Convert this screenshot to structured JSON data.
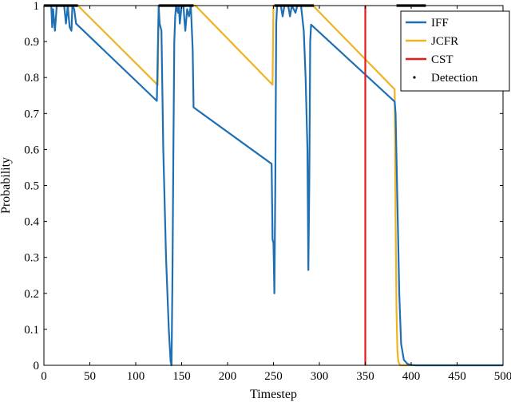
{
  "chart_data": {
    "type": "line",
    "title": "",
    "xlabel": "Timestep",
    "ylabel": "Probability",
    "xlim": [
      0,
      500
    ],
    "ylim": [
      0,
      1
    ],
    "xticks": [
      0,
      50,
      100,
      150,
      200,
      250,
      300,
      350,
      400,
      450,
      500
    ],
    "yticks": [
      0,
      0.1,
      0.2,
      0.3,
      0.4,
      0.5,
      0.6,
      0.7,
      0.8,
      0.9,
      1
    ],
    "grid": false,
    "legend_position": "top-right",
    "colors": {
      "IFF": "#1f6fb4",
      "JCFR": "#f0b323",
      "CST": "#e41a1c",
      "Detection": "#000000"
    },
    "series": [
      {
        "name": "IFF",
        "points": [
          [
            0,
            1
          ],
          [
            8,
            1
          ],
          [
            9,
            0.94
          ],
          [
            10,
            0.99
          ],
          [
            12,
            0.93
          ],
          [
            14,
            1
          ],
          [
            22,
            1
          ],
          [
            24,
            0.95
          ],
          [
            26,
            1
          ],
          [
            28,
            0.94
          ],
          [
            30,
            0.93
          ],
          [
            31,
            1
          ],
          [
            33,
            0.99
          ],
          [
            35,
            0.95
          ],
          [
            123,
            0.735
          ],
          [
            125,
            1
          ],
          [
            126,
            0.95
          ],
          [
            128,
            0.93
          ],
          [
            130,
            0.6
          ],
          [
            133,
            0.3
          ],
          [
            136,
            0.1
          ],
          [
            138,
            0.01
          ],
          [
            139,
            0.0
          ],
          [
            140,
            0.25
          ],
          [
            141,
            0.6
          ],
          [
            142,
            0.9
          ],
          [
            143,
            0.97
          ],
          [
            144,
            1
          ],
          [
            146,
            0.98
          ],
          [
            147,
            1
          ],
          [
            148,
            0.95
          ],
          [
            150,
            1
          ],
          [
            152,
            1
          ],
          [
            153,
            0.96
          ],
          [
            154,
            0.93
          ],
          [
            156,
            0.99
          ],
          [
            158,
            0.97
          ],
          [
            160,
            1
          ],
          [
            162,
            0.88
          ],
          [
            163,
            0.717
          ],
          [
            248,
            0.56
          ],
          [
            249,
            0.35
          ],
          [
            250,
            0.34
          ],
          [
            251,
            0.2
          ],
          [
            252,
            0.5
          ],
          [
            253,
            0.95
          ],
          [
            254,
            1
          ],
          [
            258,
            1
          ],
          [
            260,
            0.97
          ],
          [
            262,
            1
          ],
          [
            266,
            1
          ],
          [
            268,
            0.97
          ],
          [
            270,
            1
          ],
          [
            274,
            0.98
          ],
          [
            276,
            1
          ],
          [
            280,
            1
          ],
          [
            283,
            0.93
          ],
          [
            285,
            0.8
          ],
          [
            287,
            0.6
          ],
          [
            288,
            0.265
          ],
          [
            289,
            0.5
          ],
          [
            290,
            0.9
          ],
          [
            291,
            0.947
          ],
          [
            382,
            0.733
          ],
          [
            383,
            0.7
          ],
          [
            385,
            0.45
          ],
          [
            387,
            0.2
          ],
          [
            389,
            0.06
          ],
          [
            392,
            0.015
          ],
          [
            396,
            0.004
          ],
          [
            400,
            0.001
          ],
          [
            405,
            0
          ],
          [
            500,
            0
          ]
        ]
      },
      {
        "name": "JCFR",
        "points": [
          [
            0,
            1
          ],
          [
            37,
            1
          ],
          [
            124,
            0.779
          ],
          [
            125,
            1
          ],
          [
            165,
            1
          ],
          [
            249,
            0.78
          ],
          [
            250,
            1
          ],
          [
            293,
            1
          ],
          [
            382,
            0.767
          ],
          [
            383,
            0.4
          ],
          [
            384,
            0.15
          ],
          [
            385,
            0.04
          ],
          [
            386,
            0.01
          ],
          [
            388,
            0
          ],
          [
            500,
            0
          ]
        ]
      },
      {
        "name": "CST",
        "points": [
          [
            350,
            0
          ],
          [
            350,
            1
          ]
        ]
      },
      {
        "name": "Detection",
        "segments": [
          [
            0,
            37
          ],
          [
            125,
            163
          ],
          [
            251,
            294
          ],
          [
            384,
            416
          ]
        ],
        "y": [
          1,
          1,
          1,
          1,
          0
        ]
      }
    ],
    "legend": [
      "IFF",
      "JCFR",
      "CST",
      "Detection"
    ]
  }
}
